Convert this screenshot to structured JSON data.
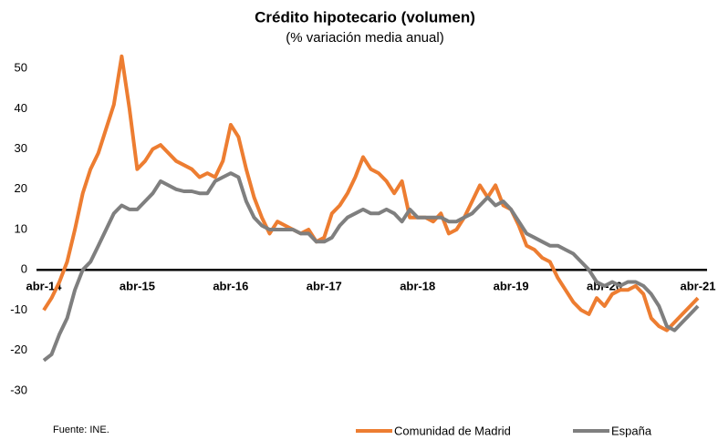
{
  "chart_data": {
    "type": "line",
    "title": "Crédito hipotecario (volumen)",
    "subtitle": "(% variación media anual)",
    "source": "Fuente: INE.",
    "categories": [
      "abr-14",
      null,
      null,
      null,
      null,
      null,
      null,
      null,
      null,
      null,
      null,
      null,
      "abr-15",
      null,
      null,
      null,
      null,
      null,
      null,
      null,
      null,
      null,
      null,
      null,
      "abr-16",
      null,
      null,
      null,
      null,
      null,
      null,
      null,
      null,
      null,
      null,
      null,
      "abr-17",
      null,
      null,
      null,
      null,
      null,
      null,
      null,
      null,
      null,
      null,
      null,
      "abr-18",
      null,
      null,
      null,
      null,
      null,
      null,
      null,
      null,
      null,
      null,
      null,
      "abr-19",
      null,
      null,
      null,
      null,
      null,
      null,
      null,
      null,
      null,
      null,
      null,
      "abr-20",
      null,
      null,
      null,
      null,
      null,
      null,
      null,
      null,
      null,
      null,
      null,
      "abr-21"
    ],
    "series": [
      {
        "name": "Comunidad de Madrid",
        "color": "#ed7d31",
        "values": [
          -10,
          -7,
          -3,
          2,
          10,
          19,
          25,
          29,
          35,
          41,
          53,
          40,
          25,
          27,
          30,
          31,
          29,
          27,
          26,
          25,
          23,
          24,
          23,
          27,
          36,
          33,
          25,
          18,
          13,
          9,
          12,
          11,
          10,
          9,
          10,
          7,
          8,
          14,
          16,
          19,
          23,
          28,
          25,
          24,
          22,
          19,
          22,
          13,
          13,
          13,
          12,
          14,
          9,
          10,
          13,
          17,
          21,
          18,
          21,
          16,
          15,
          11,
          6,
          5,
          3,
          2,
          -2,
          -5,
          -8,
          -10,
          -11,
          -7,
          -9,
          -6,
          -5,
          -5,
          -4,
          -6,
          -12,
          -14,
          -15,
          -13,
          -11,
          -9,
          -7
        ]
      },
      {
        "name": "España",
        "color": "#7f7f7f",
        "values": [
          -22.5,
          -21,
          -16,
          -12,
          -5,
          0,
          2,
          6,
          10,
          14,
          16,
          15,
          15,
          17,
          19,
          22,
          21,
          20,
          19.5,
          19.5,
          19,
          19,
          22,
          23,
          24,
          23,
          17,
          13,
          11,
          10,
          10,
          10,
          10,
          9,
          9,
          7,
          7,
          8,
          11,
          13,
          14,
          15,
          14,
          14,
          15,
          14,
          12,
          15,
          13,
          13,
          13,
          13,
          12,
          12,
          13,
          14,
          16,
          18,
          16,
          17,
          15,
          12,
          9,
          8,
          7,
          6,
          6,
          5,
          4,
          2,
          0,
          -3,
          -4,
          -3,
          -4,
          -3,
          -3,
          -4,
          -6,
          -9,
          -14,
          -15,
          -13,
          -11,
          -9
        ]
      }
    ],
    "ylim": [
      -35,
      55
    ],
    "yticks": [
      -30,
      -20,
      -10,
      0,
      10,
      20,
      30,
      40,
      50
    ],
    "grid": false
  }
}
